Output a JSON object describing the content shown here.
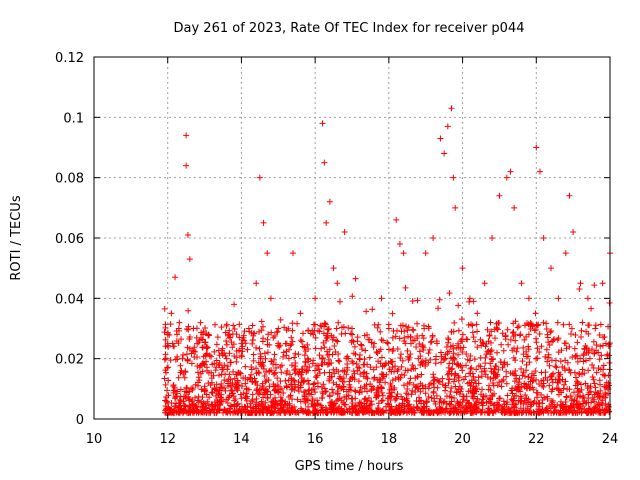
{
  "chart_data": {
    "type": "scatter",
    "title": "Day 261 of 2023, Rate Of TEC Index for receiver p044",
    "xlabel": "GPS time / hours",
    "ylabel": "ROTI / TECUs",
    "xlim": [
      10,
      24
    ],
    "ylim": [
      0,
      0.12
    ],
    "xticks": [
      10,
      12,
      14,
      16,
      18,
      20,
      22,
      24
    ],
    "xtick_labels": [
      "10",
      "12",
      "14",
      "16",
      "18",
      "20",
      "22",
      "24"
    ],
    "yticks": [
      0,
      0.02,
      0.04,
      0.06,
      0.08,
      0.1,
      0.12
    ],
    "ytick_labels": [
      "0",
      "0.02",
      "0.04",
      "0.06",
      "0.08",
      "0.1",
      "0.12"
    ],
    "grid": true,
    "marker": "+",
    "color": "#ff0000",
    "series": [
      {
        "name": "ROTI",
        "x": [
          12.0,
          12.1,
          12.2,
          12.3,
          12.4,
          12.5,
          12.5,
          12.55,
          12.6,
          12.7,
          12.8,
          12.9,
          13.0,
          13.2,
          13.4,
          13.6,
          13.8,
          14.0,
          14.2,
          14.4,
          14.5,
          14.6,
          14.7,
          14.8,
          15.0,
          15.2,
          15.4,
          15.6,
          15.8,
          16.0,
          16.2,
          16.25,
          16.3,
          16.4,
          16.5,
          16.6,
          16.8,
          17.0,
          17.2,
          17.4,
          17.6,
          17.8,
          18.0,
          18.2,
          18.3,
          18.4,
          18.6,
          18.8,
          19.0,
          19.2,
          19.4,
          19.5,
          19.6,
          19.7,
          19.75,
          19.8,
          20.0,
          20.2,
          20.4,
          20.6,
          20.8,
          21.0,
          21.2,
          21.3,
          21.4,
          21.6,
          21.8,
          22.0,
          22.1,
          22.2,
          22.4,
          22.6,
          22.8,
          22.9,
          23.0,
          23.2,
          23.4,
          23.6,
          23.8,
          24.0
        ],
        "y": [
          0.025,
          0.035,
          0.047,
          0.03,
          0.02,
          0.094,
          0.084,
          0.061,
          0.053,
          0.03,
          0.025,
          0.015,
          0.01,
          0.012,
          0.018,
          0.02,
          0.038,
          0.025,
          0.03,
          0.045,
          0.08,
          0.065,
          0.055,
          0.04,
          0.03,
          0.025,
          0.055,
          0.035,
          0.02,
          0.04,
          0.098,
          0.085,
          0.065,
          0.072,
          0.05,
          0.045,
          0.062,
          0.03,
          0.02,
          0.015,
          0.025,
          0.04,
          0.03,
          0.066,
          0.058,
          0.055,
          0.025,
          0.02,
          0.055,
          0.06,
          0.093,
          0.088,
          0.097,
          0.103,
          0.08,
          0.07,
          0.05,
          0.04,
          0.035,
          0.045,
          0.06,
          0.074,
          0.08,
          0.082,
          0.07,
          0.045,
          0.04,
          0.09,
          0.082,
          0.06,
          0.05,
          0.04,
          0.055,
          0.074,
          0.062,
          0.045,
          0.04,
          0.03,
          0.045,
          0.055
        ]
      }
    ]
  }
}
